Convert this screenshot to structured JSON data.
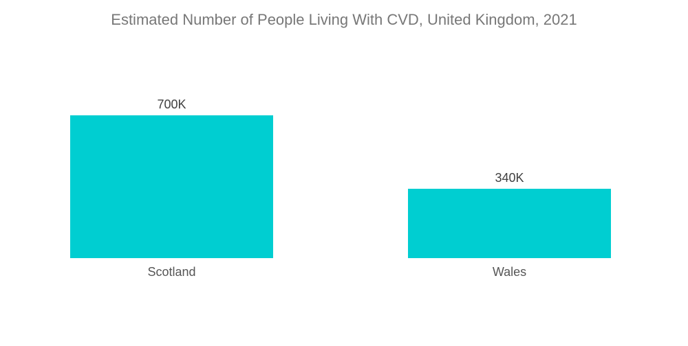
{
  "chart_data": {
    "type": "bar",
    "title": "Estimated Number of People Living With CVD, United Kingdom, 2021",
    "categories": [
      "Scotland",
      "Wales"
    ],
    "values": [
      700000,
      340000
    ],
    "value_labels": [
      "700K",
      "340K"
    ],
    "xlabel": "",
    "ylabel": "",
    "ylim": [
      0,
      700000
    ],
    "grid": false,
    "bar_color": "#00CED1"
  }
}
